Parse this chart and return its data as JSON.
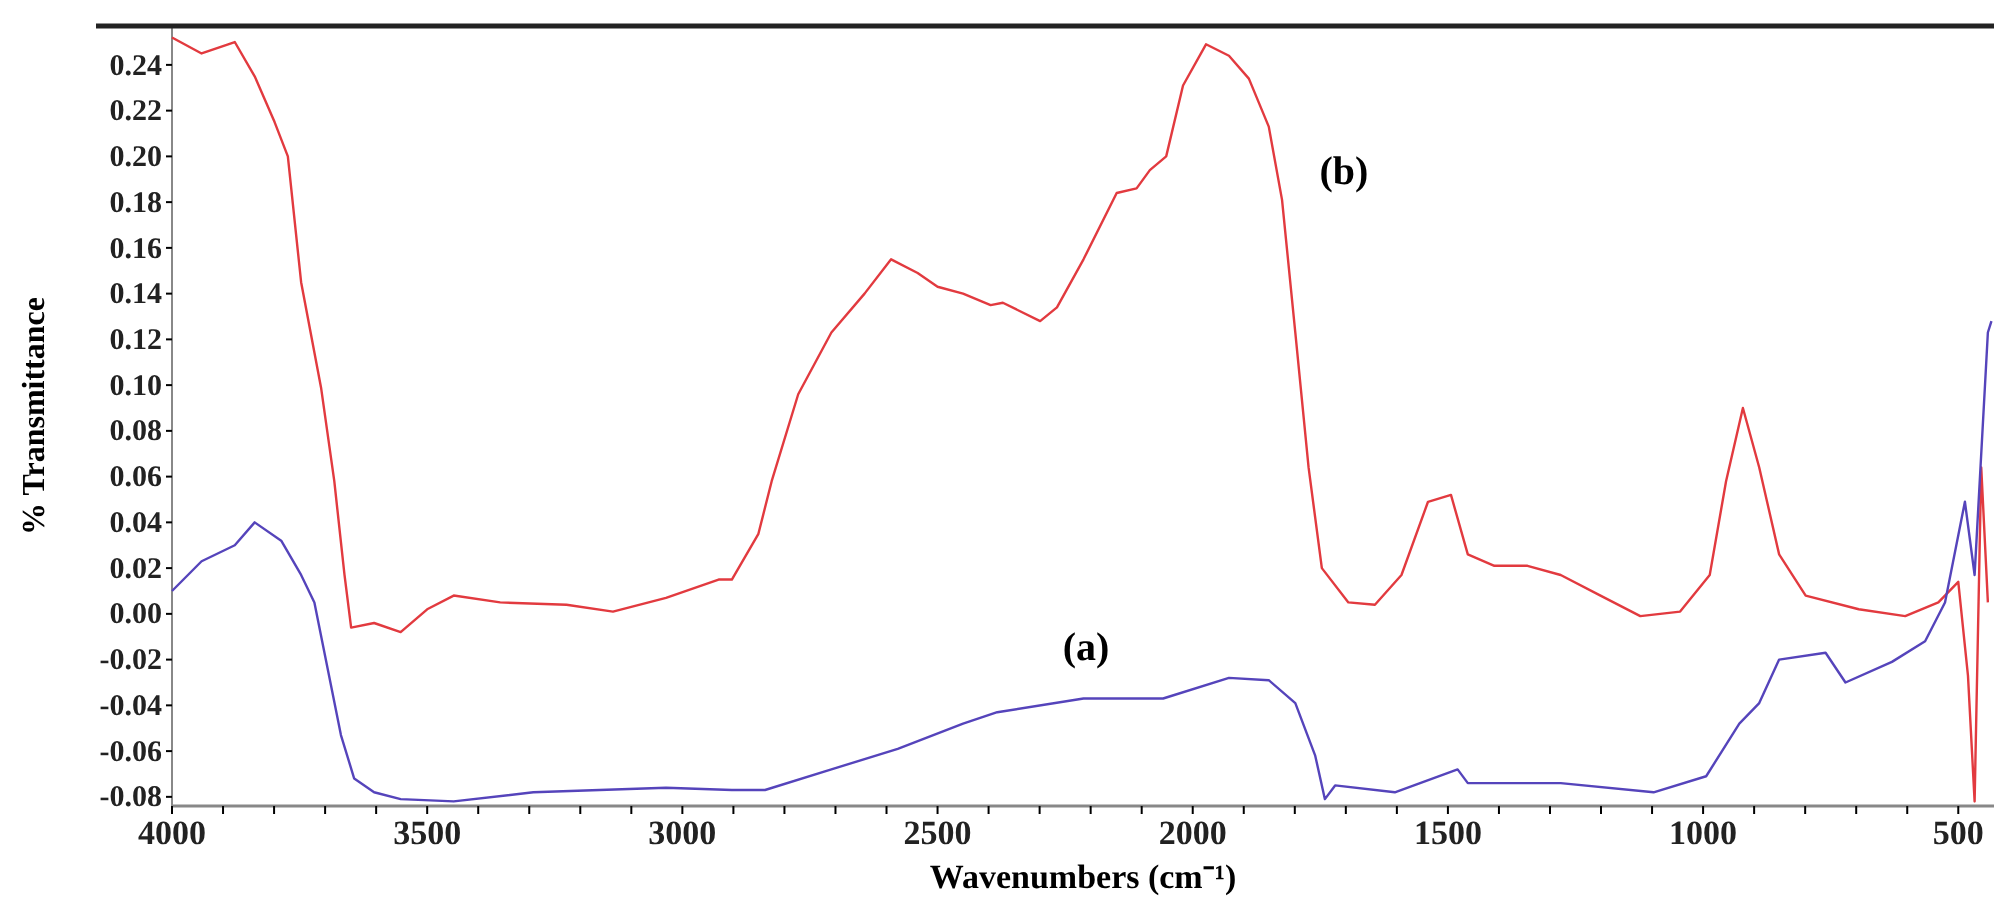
{
  "chart_data": {
    "type": "line",
    "xlabel": "Wavenumbers (cm⁻¹)",
    "ylabel": "% Transmittance",
    "xlim": [
      4000,
      430
    ],
    "ylim": [
      -0.084,
      0.257
    ],
    "xticks": [
      4000,
      {
        "value": 3900,
        "label": null
      },
      {
        "value": 3800,
        "label": null
      },
      {
        "value": 3700,
        "label": null
      },
      {
        "value": 3600,
        "label": null
      },
      3500,
      {
        "value": 3400,
        "label": null
      },
      {
        "value": 3300,
        "label": null
      },
      {
        "value": 3200,
        "label": null
      },
      {
        "value": 3100,
        "label": null
      },
      3000,
      {
        "value": 2900,
        "label": null
      },
      {
        "value": 2800,
        "label": null
      },
      {
        "value": 2700,
        "label": null
      },
      {
        "value": 2600,
        "label": null
      },
      2500,
      {
        "value": 2400,
        "label": null
      },
      {
        "value": 2300,
        "label": null
      },
      {
        "value": 2200,
        "label": null
      },
      {
        "value": 2100,
        "label": null
      },
      2000,
      {
        "value": 1900,
        "label": null
      },
      {
        "value": 1800,
        "label": null
      },
      {
        "value": 1700,
        "label": null
      },
      {
        "value": 1600,
        "label": null
      },
      1500,
      {
        "value": 1400,
        "label": null
      },
      {
        "value": 1300,
        "label": null
      },
      {
        "value": 1200,
        "label": null
      },
      {
        "value": 1100,
        "label": null
      },
      1000,
      {
        "value": 900,
        "label": null
      },
      {
        "value": 800,
        "label": null
      },
      {
        "value": 700,
        "label": null
      },
      {
        "value": 600,
        "label": null
      },
      500
    ],
    "yticks": [
      {
        "value": -0.08,
        "label": "-0.08"
      },
      {
        "value": -0.06,
        "label": "-0.06"
      },
      {
        "value": -0.04,
        "label": "-0.04"
      },
      {
        "value": -0.02,
        "label": "-0.02"
      },
      {
        "value": 0,
        "label": "0.00"
      },
      {
        "value": 0.02,
        "label": "0.02"
      },
      {
        "value": 0.04,
        "label": "0.04"
      },
      {
        "value": 0.06,
        "label": "0.06"
      },
      {
        "value": 0.08,
        "label": "0.08"
      },
      {
        "value": 0.1,
        "label": "0.10"
      },
      {
        "value": 0.12,
        "label": "0.12"
      },
      {
        "value": 0.14,
        "label": "0.14"
      },
      {
        "value": 0.16,
        "label": "0.16"
      },
      {
        "value": 0.18,
        "label": "0.18"
      },
      {
        "value": 0.2,
        "label": "0.20"
      },
      {
        "value": 0.22,
        "label": "0.22"
      },
      {
        "value": 0.24,
        "label": "0.24"
      }
    ],
    "grid": false,
    "marker": "none",
    "line_style": "solid",
    "series": [
      {
        "name": "(b)",
        "color": "#e23a3f",
        "x": [
          4000,
          3942,
          3877,
          3838,
          3799,
          3773,
          3747,
          3708,
          3682,
          3662,
          3649,
          3604,
          3552,
          3500,
          3448,
          3357,
          3227,
          3136,
          3032,
          2929,
          2903,
          2851,
          2825,
          2773,
          2708,
          2643,
          2591,
          2539,
          2500,
          2450,
          2396,
          2372,
          2299,
          2266,
          2214,
          2149,
          2110,
          2084,
          2052,
          2019,
          1974,
          1929,
          1890,
          1851,
          1825,
          1799,
          1773,
          1747,
          1695,
          1643,
          1591,
          1539,
          1494,
          1461,
          1409,
          1344,
          1279,
          1201,
          1123,
          1045,
          987,
          955,
          922,
          890,
          851,
          799,
          695,
          604,
          539,
          500,
          481,
          468,
          455,
          442
        ],
        "values": [
          0.252,
          0.245,
          0.25,
          0.235,
          0.215,
          0.2,
          0.145,
          0.099,
          0.058,
          0.017,
          -0.006,
          -0.004,
          -0.008,
          0.002,
          0.008,
          0.005,
          0.004,
          0.001,
          0.007,
          0.015,
          0.015,
          0.035,
          0.058,
          0.096,
          0.123,
          0.14,
          0.155,
          0.149,
          0.143,
          0.14,
          0.135,
          0.136,
          0.128,
          0.134,
          0.155,
          0.184,
          0.186,
          0.194,
          0.2,
          0.231,
          0.249,
          0.244,
          0.234,
          0.213,
          0.181,
          0.123,
          0.064,
          0.02,
          0.005,
          0.004,
          0.017,
          0.049,
          0.052,
          0.026,
          0.021,
          0.021,
          0.017,
          0.008,
          -0.001,
          0.001,
          0.017,
          0.058,
          0.09,
          0.064,
          0.026,
          0.008,
          0.002,
          -0.001,
          0.005,
          0.014,
          -0.027,
          -0.082,
          0.064,
          0.005
        ]
      },
      {
        "name": "(a)",
        "color": "#5544bb",
        "x": [
          4000,
          3942,
          3877,
          3838,
          3786,
          3747,
          3721,
          3695,
          3669,
          3643,
          3604,
          3552,
          3448,
          3292,
          3032,
          2903,
          2838,
          2708,
          2578,
          2450,
          2383,
          2214,
          2058,
          1929,
          1851,
          1799,
          1760,
          1741,
          1721,
          1604,
          1481,
          1461,
          1279,
          1097,
          994,
          929,
          890,
          851,
          760,
          721,
          630,
          565,
          526,
          487,
          468,
          442,
          435
        ],
        "values": [
          0.01,
          0.023,
          0.03,
          0.04,
          0.032,
          0.017,
          0.005,
          -0.024,
          -0.053,
          -0.072,
          -0.078,
          -0.081,
          -0.082,
          -0.078,
          -0.076,
          -0.077,
          -0.077,
          -0.068,
          -0.059,
          -0.048,
          -0.043,
          -0.037,
          -0.037,
          -0.028,
          -0.029,
          -0.039,
          -0.062,
          -0.081,
          -0.075,
          -0.078,
          -0.068,
          -0.074,
          -0.074,
          -0.078,
          -0.071,
          -0.048,
          -0.039,
          -0.02,
          -0.017,
          -0.03,
          -0.021,
          -0.012,
          0.005,
          0.049,
          0.017,
          0.123,
          0.128
        ]
      }
    ]
  }
}
